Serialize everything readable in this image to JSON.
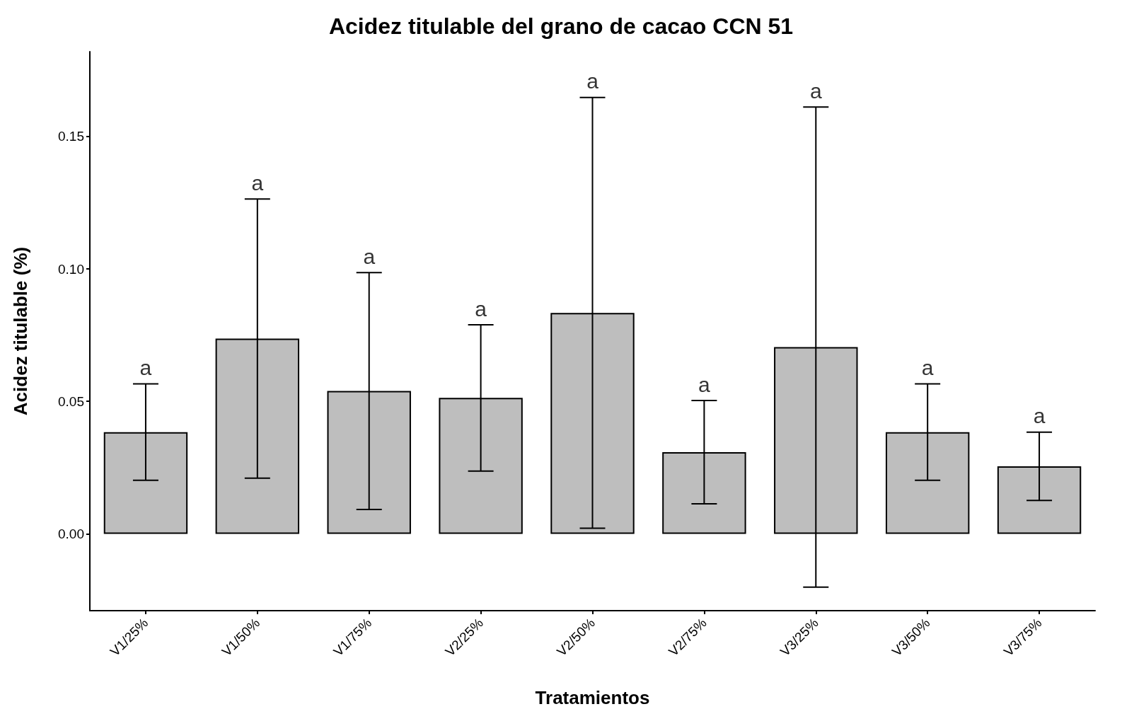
{
  "chart_data": {
    "type": "bar",
    "title": "Acidez titulable del grano de cacao CCN 51",
    "xlabel": "Tratamientos",
    "ylabel": "Acidez titulable (%)",
    "categories": [
      "V1/25%",
      "V1/50%",
      "V1/75%",
      "V2/25%",
      "V2/50%",
      "V2/75%",
      "V3/25%",
      "V3/50%",
      "V3/75%"
    ],
    "values": [
      0.0384,
      0.0737,
      0.0539,
      0.0513,
      0.0834,
      0.0308,
      0.0705,
      0.0384,
      0.0255
    ],
    "errors": [
      0.0182,
      0.0527,
      0.0447,
      0.0276,
      0.0813,
      0.0195,
      0.0906,
      0.0182,
      0.0129
    ],
    "color": "#bebebe",
    "ylim": [
      -0.029,
      0.182
    ],
    "yticks": [
      {
        "value": 0,
        "label": "0.00"
      },
      {
        "value": 0.05,
        "label": "0.05"
      },
      {
        "value": 0.1,
        "label": "0.10"
      },
      {
        "value": 0.15,
        "label": "0.15"
      }
    ],
    "grid": false,
    "annotations": [
      {
        "text": "a",
        "x": "V1/25%",
        "y": 0.0566
      },
      {
        "text": "a",
        "x": "V1/50%",
        "y": 0.1264
      },
      {
        "text": "a",
        "x": "V1/75%",
        "y": 0.0986
      },
      {
        "text": "a",
        "x": "V2/25%",
        "y": 0.0789
      },
      {
        "text": "a",
        "x": "V2/50%",
        "y": 0.1647
      },
      {
        "text": "a",
        "x": "V2/75%",
        "y": 0.0503
      },
      {
        "text": "a",
        "x": "V3/25%",
        "y": 0.1611
      },
      {
        "text": "a",
        "x": "V3/50%",
        "y": 0.0566
      },
      {
        "text": "a",
        "x": "V3/75%",
        "y": 0.0384
      }
    ]
  }
}
